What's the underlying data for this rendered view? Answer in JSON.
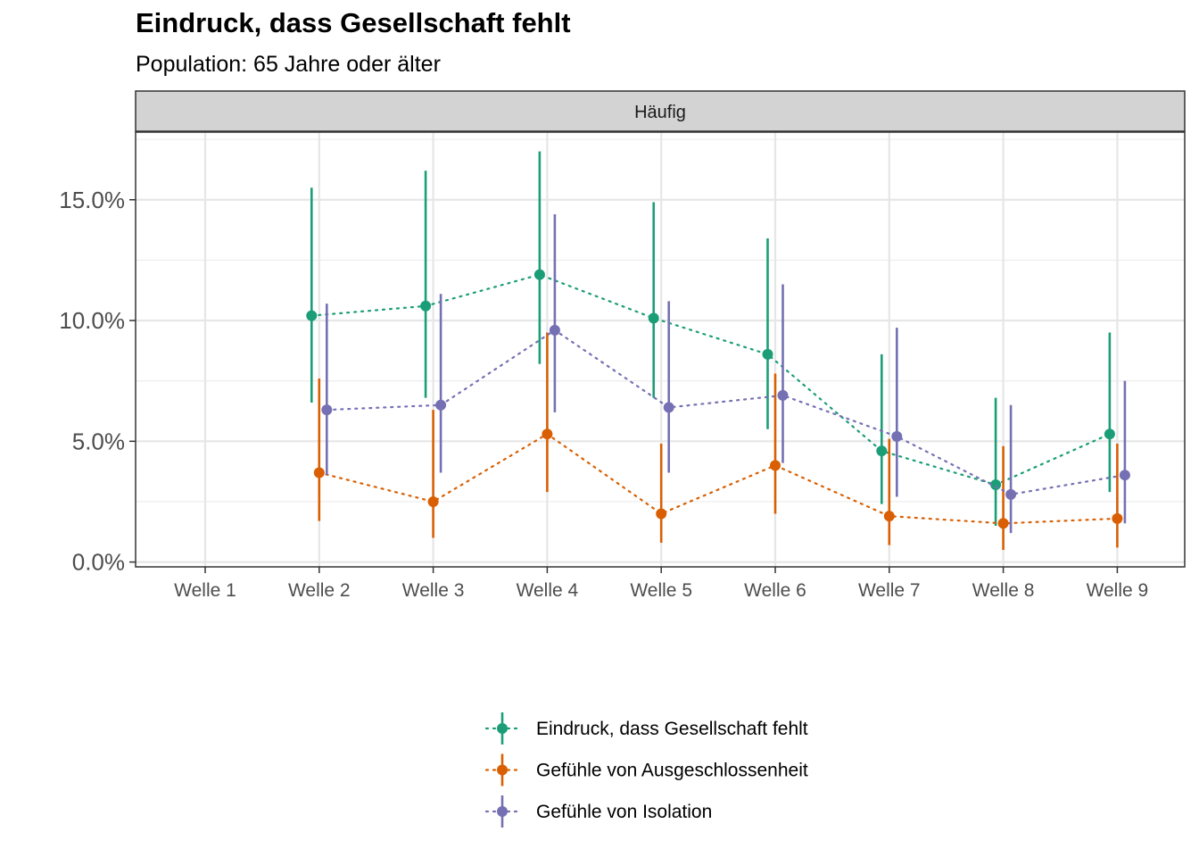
{
  "chart_data": {
    "type": "line",
    "title": "Eindruck, dass Gesellschaft fehlt",
    "subtitle": "Population: 65 Jahre oder älter",
    "facet_label": "Häufig",
    "xlabel": "",
    "ylabel": "",
    "categories": [
      "Welle 1",
      "Welle 2",
      "Welle 3",
      "Welle 4",
      "Welle 5",
      "Welle 6",
      "Welle 7",
      "Welle 8",
      "Welle 9"
    ],
    "y_ticks": [
      0,
      5,
      10,
      15
    ],
    "y_tick_labels": [
      "0.0%",
      "5.0%",
      "10.0%",
      "15.0%"
    ],
    "ylim": [
      -0.2,
      17.8
    ],
    "grid": true,
    "legend_position": "bottom",
    "series": [
      {
        "name": "Eindruck, dass Gesellschaft fehlt",
        "color": "#1b9e77",
        "values": [
          null,
          10.2,
          10.6,
          11.9,
          10.1,
          8.6,
          4.6,
          3.2,
          5.3
        ],
        "lower": [
          null,
          6.6,
          6.8,
          8.2,
          6.8,
          5.5,
          2.4,
          1.5,
          2.9
        ],
        "upper": [
          null,
          15.5,
          16.2,
          17.0,
          14.9,
          13.4,
          8.6,
          6.8,
          9.5
        ]
      },
      {
        "name": "Gefühle von Ausgeschlossenheit",
        "color": "#d95f02",
        "values": [
          null,
          3.7,
          2.5,
          5.3,
          2.0,
          4.0,
          1.9,
          1.6,
          1.8
        ],
        "lower": [
          null,
          1.7,
          1.0,
          2.9,
          0.8,
          2.0,
          0.7,
          0.5,
          0.6
        ],
        "upper": [
          null,
          7.6,
          6.3,
          9.5,
          4.9,
          7.8,
          5.1,
          4.8,
          4.9
        ]
      },
      {
        "name": "Gefühle von Isolation",
        "color": "#7570b3",
        "values": [
          null,
          6.3,
          6.5,
          9.6,
          6.4,
          6.9,
          5.2,
          2.8,
          3.6
        ],
        "lower": [
          null,
          3.6,
          3.7,
          6.2,
          3.7,
          4.1,
          2.7,
          1.2,
          1.6
        ],
        "upper": [
          null,
          10.7,
          11.1,
          14.4,
          10.8,
          11.5,
          9.7,
          6.5,
          7.5
        ]
      }
    ]
  }
}
